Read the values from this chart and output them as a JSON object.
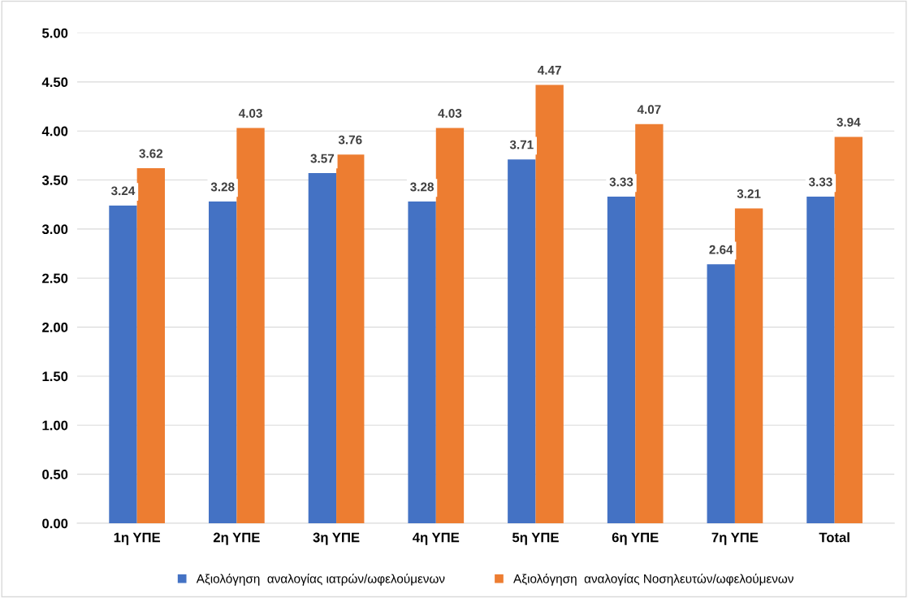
{
  "chart_data": {
    "type": "bar",
    "categories": [
      "1η ΥΠΕ",
      "2η ΥΠΕ",
      "3η ΥΠΕ",
      "4η ΥΠΕ",
      "5η ΥΠΕ",
      "6η ΥΠΕ",
      "7η ΥΠΕ",
      "Total"
    ],
    "series": [
      {
        "name": "Αξιολόγηση  αναλογίας ιατρών/ωφελούμενων",
        "color": "#4472c4",
        "values": [
          3.24,
          3.28,
          3.57,
          3.28,
          3.71,
          3.33,
          2.64,
          3.33
        ]
      },
      {
        "name": "Αξιολόγηση  αναλογίας Νοσηλευτών/ωφελούμενων",
        "color": "#ed7d31",
        "values": [
          3.62,
          4.03,
          3.76,
          4.03,
          4.47,
          4.07,
          3.21,
          3.94
        ]
      }
    ],
    "ylim": [
      0,
      5
    ],
    "yticks": [
      {
        "value": 0,
        "label": "0.00"
      },
      {
        "value": 0.5,
        "label": "0.50"
      },
      {
        "value": 1,
        "label": "1.00"
      },
      {
        "value": 1.5,
        "label": "1.50"
      },
      {
        "value": 2,
        "label": "2.00"
      },
      {
        "value": 2.5,
        "label": "2.50"
      },
      {
        "value": 3,
        "label": "3.00"
      },
      {
        "value": 3.5,
        "label": "3.50"
      },
      {
        "value": 4,
        "label": "4.00"
      },
      {
        "value": 4.5,
        "label": "4.50"
      },
      {
        "value": 5,
        "label": "5.00"
      }
    ],
    "grid": "y",
    "legend": "bottom",
    "data_labels": true
  }
}
